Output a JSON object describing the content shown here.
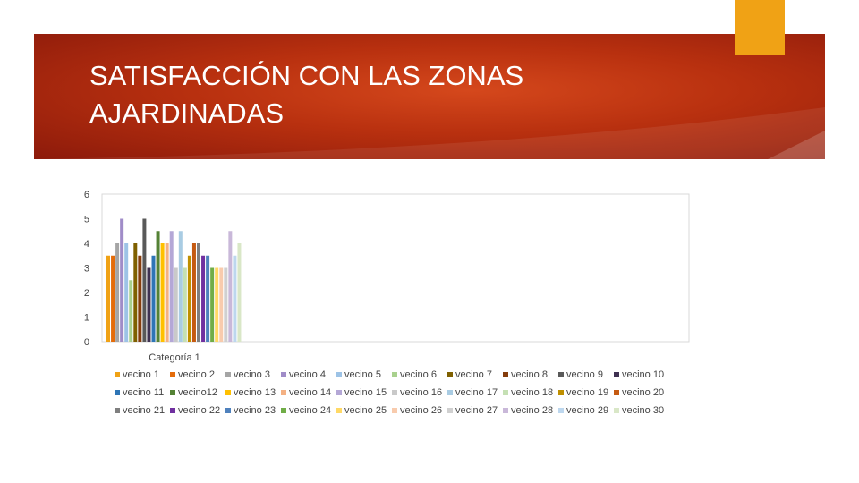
{
  "slide": {
    "title_line1": "SATISFACCIÓN CON LAS ZONAS",
    "title_line2": "AJARDINADAS",
    "accent_color": "#f0a215",
    "banner_color": "#b8300f"
  },
  "chart_data": {
    "type": "bar",
    "categories": [
      "Categoría 1"
    ],
    "ylim": [
      0,
      6
    ],
    "yticks": [
      0,
      1,
      2,
      3,
      4,
      5,
      6
    ],
    "grid": false,
    "legend_position": "bottom",
    "series": [
      {
        "name": "vecino 1",
        "values": [
          3.5
        ],
        "color": "#f0a215"
      },
      {
        "name": "vecino 2",
        "values": [
          3.5
        ],
        "color": "#e46c0a"
      },
      {
        "name": "vecino 3",
        "values": [
          4
        ],
        "color": "#a5a5a5"
      },
      {
        "name": "vecino 4",
        "values": [
          5
        ],
        "color": "#a08cc8"
      },
      {
        "name": "vecino 5",
        "values": [
          4
        ],
        "color": "#9dc3e6"
      },
      {
        "name": "vecino 6",
        "values": [
          2.5
        ],
        "color": "#a9d18e"
      },
      {
        "name": "vecino 7",
        "values": [
          4
        ],
        "color": "#7f6000"
      },
      {
        "name": "vecino 8",
        "values": [
          3.5
        ],
        "color": "#843c0c"
      },
      {
        "name": "vecino 9",
        "values": [
          5
        ],
        "color": "#595959"
      },
      {
        "name": "vecino 10",
        "values": [
          3
        ],
        "color": "#3f3151"
      },
      {
        "name": "vecino 11",
        "values": [
          3.5
        ],
        "color": "#2e75b6"
      },
      {
        "name": "vecino12",
        "values": [
          4.5
        ],
        "color": "#548235"
      },
      {
        "name": "vecino 13",
        "values": [
          4
        ],
        "color": "#ffc000"
      },
      {
        "name": "vecino 14",
        "values": [
          4
        ],
        "color": "#f4b183"
      },
      {
        "name": "vecino 15",
        "values": [
          4.5
        ],
        "color": "#b4a7d6"
      },
      {
        "name": "vecino 16",
        "values": [
          3
        ],
        "color": "#c9c9c9"
      },
      {
        "name": "vecino 17",
        "values": [
          4.5
        ],
        "color": "#a9cce3"
      },
      {
        "name": "vecino 18",
        "values": [
          3
        ],
        "color": "#c5e0b4"
      },
      {
        "name": "vecino 19",
        "values": [
          3.5
        ],
        "color": "#bf8f00"
      },
      {
        "name": "vecino 20",
        "values": [
          4
        ],
        "color": "#c55a11"
      },
      {
        "name": "vecino 21",
        "values": [
          4
        ],
        "color": "#7f7f7f"
      },
      {
        "name": "vecino 22",
        "values": [
          3.5
        ],
        "color": "#7030a0"
      },
      {
        "name": "vecino 23",
        "values": [
          3.5
        ],
        "color": "#4f81bd"
      },
      {
        "name": "vecino 24",
        "values": [
          3
        ],
        "color": "#70ad47"
      },
      {
        "name": "vecino 25",
        "values": [
          3
        ],
        "color": "#ffd966"
      },
      {
        "name": "vecino 26",
        "values": [
          3
        ],
        "color": "#f8cbad"
      },
      {
        "name": "vecino 27",
        "values": [
          3
        ],
        "color": "#d0d0d0"
      },
      {
        "name": "vecino 28",
        "values": [
          4.5
        ],
        "color": "#c9b8d9"
      },
      {
        "name": "vecino 29",
        "values": [
          3.5
        ],
        "color": "#bdd7ee"
      },
      {
        "name": "vecino 30",
        "values": [
          4
        ],
        "color": "#d9e7c7"
      }
    ]
  }
}
